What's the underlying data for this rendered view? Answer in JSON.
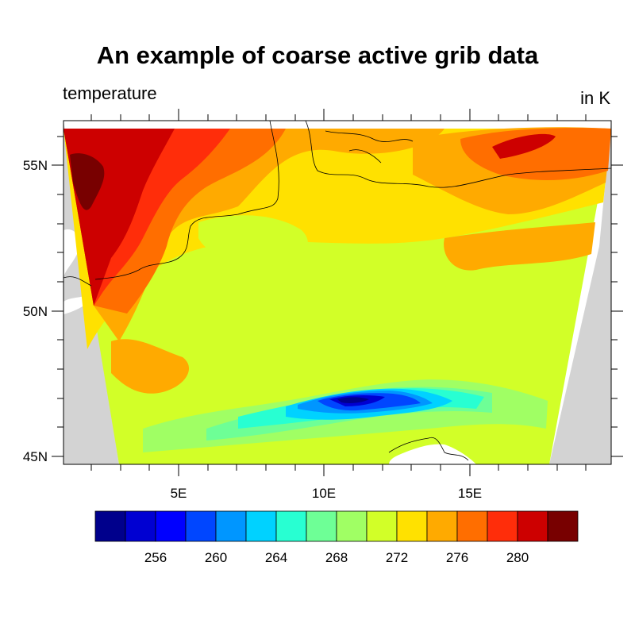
{
  "title": "An example of coarse active grib data",
  "left_string": "temperature",
  "right_string": "in K",
  "map": {
    "lat_range": [
      44.8,
      56.5
    ],
    "lon_range": [
      0.9,
      19.7
    ],
    "lat_ticks": [
      "45N",
      "50N",
      "55N"
    ],
    "lon_ticks": [
      "5E",
      "10E",
      "15E"
    ],
    "land_color": "#d3d3d3",
    "coastline_color": "#000000"
  },
  "colorbar": {
    "colors": [
      "#00008c",
      "#0000d2",
      "#0000ff",
      "#0046ff",
      "#0096ff",
      "#00d2ff",
      "#28ffd2",
      "#6eff96",
      "#a0ff64",
      "#d2ff28",
      "#ffe100",
      "#ffaa00",
      "#ff6e00",
      "#ff2d0a",
      "#cd0000",
      "#780000"
    ],
    "labels": [
      "256",
      "260",
      "264",
      "268",
      "272",
      "276",
      "280"
    ],
    "levels": [
      254,
      256,
      258,
      260,
      262,
      264,
      266,
      268,
      270,
      272,
      274,
      276,
      278,
      280,
      282
    ]
  }
}
